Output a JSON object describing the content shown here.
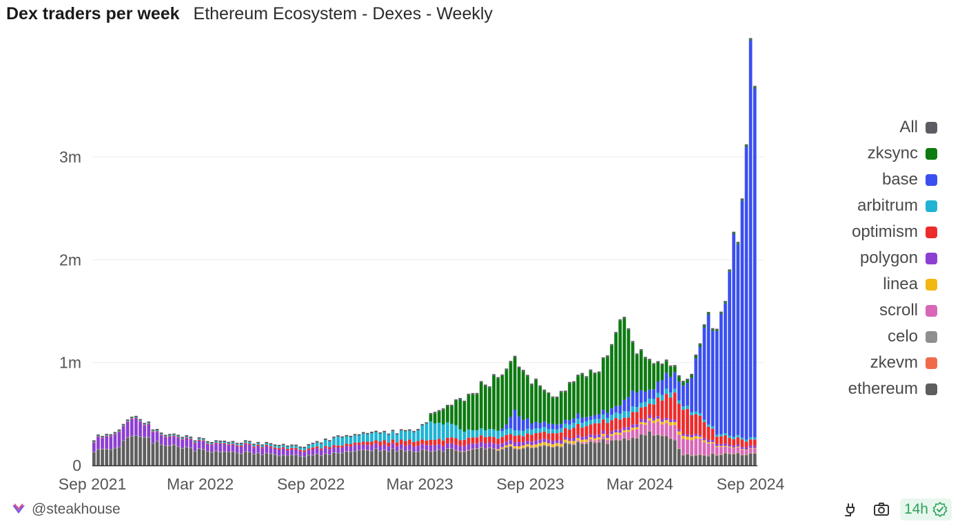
{
  "header": {
    "title": "Dex traders per week",
    "subtitle": "Ethereum Ecosystem - Dexes - Weekly"
  },
  "footer": {
    "author": "@steakhouse",
    "refresh_label": "14h"
  },
  "colors": {
    "All": "#5c5c63",
    "zksync": "#0d7a12",
    "base": "#3a4ff0",
    "arbitrum": "#20b3d4",
    "optimism": "#ee2b2b",
    "polygon": "#8c3fd1",
    "linea": "#f2b811",
    "scroll": "#d867b8",
    "celo": "#8f8f8f",
    "zkevm": "#f06a4a",
    "ethereum": "#5e5e5e"
  },
  "chart_data": {
    "type": "bar",
    "stacked": true,
    "interval": "weekly",
    "x_range": [
      "2021-09-06",
      "2024-09-09"
    ],
    "x_ticks": [
      "Sep 2021",
      "Mar 2022",
      "Sep 2022",
      "Mar 2023",
      "Sep 2023",
      "Mar 2024",
      "Sep 2024"
    ],
    "y_ticks": [
      "0",
      "1m",
      "2m",
      "3m"
    ],
    "y_tick_values": [
      0,
      1000000,
      2000000,
      3000000
    ],
    "ylim": [
      0,
      3950000
    ],
    "grid": true,
    "legend_position": "right",
    "legend": [
      "All",
      "zksync",
      "base",
      "arbitrum",
      "optimism",
      "polygon",
      "linea",
      "scroll",
      "celo",
      "zkevm",
      "ethereum"
    ],
    "series_order": [
      "ethereum",
      "zkevm",
      "celo",
      "scroll",
      "linea",
      "polygon",
      "optimism",
      "arbitrum",
      "base",
      "zksync"
    ],
    "series": [
      {
        "name": "ethereum",
        "knots": [
          [
            0,
            140000
          ],
          [
            4,
            160000
          ],
          [
            6,
            180000
          ],
          [
            8,
            270000
          ],
          [
            12,
            260000
          ],
          [
            16,
            200000
          ],
          [
            22,
            160000
          ],
          [
            30,
            130000
          ],
          [
            40,
            110000
          ],
          [
            50,
            90000
          ],
          [
            56,
            110000
          ],
          [
            60,
            140000
          ],
          [
            68,
            150000
          ],
          [
            76,
            140000
          ],
          [
            80,
            140000
          ],
          [
            88,
            150000
          ],
          [
            96,
            160000
          ],
          [
            104,
            170000
          ],
          [
            110,
            190000
          ],
          [
            116,
            220000
          ],
          [
            124,
            240000
          ],
          [
            130,
            270000
          ],
          [
            134,
            320000
          ],
          [
            136,
            280000
          ],
          [
            138,
            260000
          ],
          [
            140,
            100000
          ],
          [
            146,
            100000
          ],
          [
            152,
            110000
          ],
          [
            156,
            110000
          ]
        ]
      },
      {
        "name": "zkevm",
        "knots": [
          [
            0,
            0
          ],
          [
            85,
            0
          ],
          [
            86,
            2000
          ],
          [
            156,
            3000
          ]
        ]
      },
      {
        "name": "celo",
        "knots": [
          [
            0,
            5000
          ],
          [
            156,
            5000
          ]
        ]
      },
      {
        "name": "scroll",
        "knots": [
          [
            0,
            0
          ],
          [
            112,
            0
          ],
          [
            114,
            6000
          ],
          [
            120,
            20000
          ],
          [
            126,
            60000
          ],
          [
            132,
            110000
          ],
          [
            136,
            120000
          ],
          [
            140,
            140000
          ],
          [
            144,
            140000
          ],
          [
            148,
            70000
          ],
          [
            152,
            50000
          ],
          [
            156,
            40000
          ]
        ]
      },
      {
        "name": "linea",
        "knots": [
          [
            0,
            0
          ],
          [
            95,
            0
          ],
          [
            96,
            10000
          ],
          [
            100,
            20000
          ],
          [
            108,
            25000
          ],
          [
            120,
            20000
          ],
          [
            130,
            20000
          ],
          [
            136,
            30000
          ],
          [
            140,
            30000
          ],
          [
            148,
            10000
          ],
          [
            156,
            5000
          ]
        ]
      },
      {
        "name": "polygon",
        "knots": [
          [
            0,
            100000
          ],
          [
            6,
            140000
          ],
          [
            9,
            160000
          ],
          [
            12,
            120000
          ],
          [
            16,
            80000
          ],
          [
            24,
            80000
          ],
          [
            30,
            70000
          ],
          [
            40,
            60000
          ],
          [
            50,
            50000
          ],
          [
            60,
            55000
          ],
          [
            70,
            50000
          ],
          [
            80,
            55000
          ],
          [
            90,
            50000
          ],
          [
            100,
            40000
          ],
          [
            110,
            30000
          ],
          [
            120,
            30000
          ],
          [
            130,
            30000
          ],
          [
            140,
            20000
          ],
          [
            156,
            20000
          ]
        ]
      },
      {
        "name": "optimism",
        "knots": [
          [
            0,
            5000
          ],
          [
            30,
            8000
          ],
          [
            50,
            15000
          ],
          [
            60,
            20000
          ],
          [
            70,
            40000
          ],
          [
            80,
            50000
          ],
          [
            90,
            60000
          ],
          [
            100,
            60000
          ],
          [
            110,
            70000
          ],
          [
            116,
            100000
          ],
          [
            120,
            110000
          ],
          [
            126,
            100000
          ],
          [
            132,
            120000
          ],
          [
            136,
            230000
          ],
          [
            140,
            250000
          ],
          [
            144,
            180000
          ],
          [
            148,
            80000
          ],
          [
            152,
            70000
          ],
          [
            156,
            60000
          ]
        ]
      },
      {
        "name": "arbitrum",
        "knots": [
          [
            0,
            5000
          ],
          [
            30,
            10000
          ],
          [
            50,
            20000
          ],
          [
            56,
            60000
          ],
          [
            58,
            80000
          ],
          [
            60,
            70000
          ],
          [
            66,
            80000
          ],
          [
            70,
            70000
          ],
          [
            76,
            100000
          ],
          [
            80,
            170000
          ],
          [
            84,
            150000
          ],
          [
            88,
            80000
          ],
          [
            92,
            70000
          ],
          [
            96,
            70000
          ],
          [
            100,
            50000
          ],
          [
            110,
            40000
          ],
          [
            116,
            50000
          ],
          [
            120,
            40000
          ],
          [
            126,
            60000
          ],
          [
            130,
            50000
          ],
          [
            136,
            50000
          ],
          [
            140,
            30000
          ],
          [
            148,
            20000
          ],
          [
            156,
            20000
          ]
        ]
      },
      {
        "name": "base",
        "knots": [
          [
            0,
            0
          ],
          [
            96,
            0
          ],
          [
            98,
            50000
          ],
          [
            100,
            180000
          ],
          [
            104,
            60000
          ],
          [
            108,
            50000
          ],
          [
            112,
            40000
          ],
          [
            116,
            50000
          ],
          [
            118,
            40000
          ],
          [
            124,
            60000
          ],
          [
            128,
            150000
          ],
          [
            132,
            80000
          ],
          [
            136,
            150000
          ],
          [
            140,
            200000
          ],
          [
            142,
            300000
          ],
          [
            144,
            700000
          ],
          [
            146,
            1000000
          ],
          [
            148,
            1100000
          ],
          [
            150,
            1400000
          ],
          [
            152,
            1950000
          ],
          [
            154,
            2200000
          ],
          [
            156,
            3550000
          ]
        ]
      },
      {
        "name": "zksync",
        "knots": [
          [
            0,
            0
          ],
          [
            79,
            0
          ],
          [
            80,
            70000
          ],
          [
            84,
            160000
          ],
          [
            88,
            300000
          ],
          [
            92,
            400000
          ],
          [
            96,
            500000
          ],
          [
            98,
            580000
          ],
          [
            100,
            500000
          ],
          [
            104,
            400000
          ],
          [
            108,
            280000
          ],
          [
            112,
            300000
          ],
          [
            116,
            400000
          ],
          [
            120,
            400000
          ],
          [
            124,
            700000
          ],
          [
            126,
            850000
          ],
          [
            128,
            450000
          ],
          [
            132,
            300000
          ],
          [
            134,
            200000
          ],
          [
            136,
            130000
          ],
          [
            138,
            60000
          ],
          [
            140,
            30000
          ],
          [
            144,
            20000
          ],
          [
            148,
            10000
          ],
          [
            152,
            10000
          ],
          [
            156,
            10000
          ]
        ]
      }
    ]
  }
}
